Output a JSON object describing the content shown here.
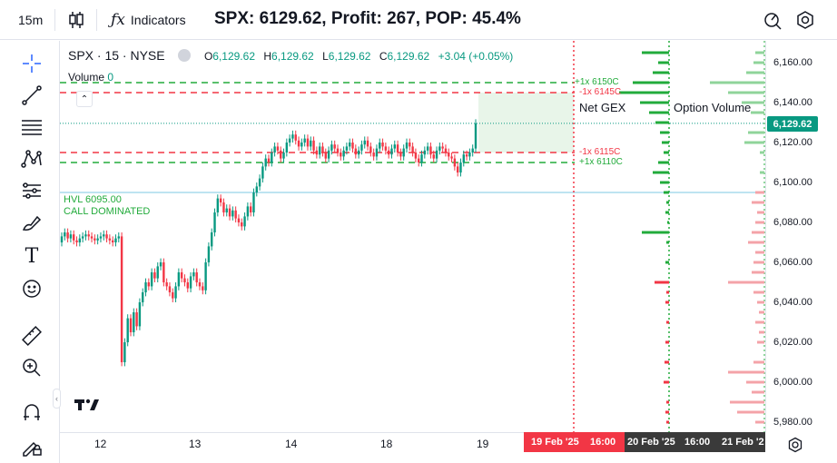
{
  "toolbar": {
    "interval": "15m",
    "indicators_label": "Indicators",
    "title": "SPX: 6129.62, Profit: 267, POP: 45.4%"
  },
  "legend": {
    "symbol": "SPX · 15 · NYSE",
    "o_label": "O",
    "o_value": "6,129.62",
    "h_label": "H",
    "h_value": "6,129.62",
    "l_label": "L",
    "l_value": "6,129.62",
    "c_label": "C",
    "c_value": "6,129.62",
    "change": "+3.04 (+0.05%)",
    "volume_label": "Volume",
    "volume_value": "0"
  },
  "annotations": {
    "hvl_line1": "HVL 6095.00",
    "hvl_line2": "CALL DOMINATED",
    "net_gex": "Net GEX",
    "option_volume": "Option Volume"
  },
  "levels": [
    {
      "label": "+1x 6150C",
      "price": 6150,
      "color": "#22ab3b"
    },
    {
      "label": "-1x 6145C",
      "price": 6145,
      "color": "#f23645"
    },
    {
      "label": "-1x 6115C",
      "price": 6115,
      "color": "#f23645"
    },
    {
      "label": "+1x 6110C",
      "price": 6110,
      "color": "#22ab3b"
    }
  ],
  "price_axis": {
    "ticks": [
      "6,160.00",
      "6,140.00",
      "6,120.00",
      "6,100.00",
      "6,080.00",
      "6,060.00",
      "6,040.00",
      "6,020.00",
      "6,000.00",
      "5,980.00"
    ],
    "current_price": "6,129.62"
  },
  "time_axis": {
    "ticks": [
      "12",
      "13",
      "14",
      "18",
      "19"
    ],
    "expiry_1_date": "19 Feb '25",
    "expiry_1_time": "16:00",
    "expiry_2_date": "20 Feb '25",
    "expiry_2_time": "16:00",
    "expiry_3_date": "21 Feb '2"
  },
  "chart_data": {
    "type": "candlestick",
    "ylim": [
      5975,
      6170
    ],
    "hvl": 6095,
    "last_price": 6129.62,
    "colors": {
      "up": "#089981",
      "down": "#f23645",
      "gex_pos": "#22ab3b",
      "gex_neg": "#f23645",
      "vol_pos": "#8fd49a",
      "vol_neg": "#f4a3a8"
    },
    "close_series": [
      6073,
      6075,
      6072,
      6074,
      6071,
      6070,
      6072,
      6073,
      6074,
      6073,
      6072,
      6071,
      6072,
      6073,
      6074,
      6072,
      6071,
      6070,
      6072,
      6073,
      6010,
      6020,
      6032,
      6025,
      6035,
      6028,
      6040,
      6045,
      6050,
      6048,
      6055,
      6052,
      6058,
      6060,
      6050,
      6048,
      6045,
      6042,
      6048,
      6055,
      6052,
      6050,
      6047,
      6053,
      6055,
      6050,
      6048,
      6046,
      6060,
      6068,
      6075,
      6085,
      6092,
      6090,
      6085,
      6087,
      6083,
      6086,
      6082,
      6080,
      6078,
      6083,
      6088,
      6085,
      6095,
      6098,
      6102,
      6108,
      6112,
      6110,
      6115,
      6118,
      6116,
      6112,
      6115,
      6120,
      6122,
      6124,
      6121,
      6118,
      6120,
      6122,
      6118,
      6121,
      6116,
      6114,
      6118,
      6115,
      6112,
      6116,
      6119,
      6117,
      6115,
      6113,
      6116,
      6118,
      6120,
      6117,
      6114,
      6116,
      6119,
      6121,
      6118,
      6115,
      6113,
      6117,
      6120,
      6118,
      6116,
      6114,
      6117,
      6119,
      6115,
      6113,
      6117,
      6120,
      6118,
      6115,
      6112,
      6110,
      6114,
      6116,
      6118,
      6114,
      6112,
      6116,
      6118,
      6117,
      6115,
      6113,
      6112,
      6108,
      6105,
      6110,
      6114,
      6113,
      6115,
      6117,
      6129.62
    ],
    "net_gex": [
      {
        "strike": 6165,
        "value": 30
      },
      {
        "strike": 6160,
        "value": 12
      },
      {
        "strike": 6155,
        "value": 18
      },
      {
        "strike": 6150,
        "value": 40
      },
      {
        "strike": 6145,
        "value": 55
      },
      {
        "strike": 6140,
        "value": 32
      },
      {
        "strike": 6135,
        "value": 22
      },
      {
        "strike": 6130,
        "value": 15
      },
      {
        "strike": 6125,
        "value": 10
      },
      {
        "strike": 6120,
        "value": 8
      },
      {
        "strike": 6115,
        "value": 6
      },
      {
        "strike": 6110,
        "value": 12
      },
      {
        "strike": 6105,
        "value": 18
      },
      {
        "strike": 6100,
        "value": 10
      },
      {
        "strike": 6095,
        "value": 6
      },
      {
        "strike": 6090,
        "value": 3
      },
      {
        "strike": 6085,
        "value": 4
      },
      {
        "strike": 6080,
        "value": 2
      },
      {
        "strike": 6075,
        "value": 30
      },
      {
        "strike": 6070,
        "value": 3
      },
      {
        "strike": 6060,
        "value": 4
      },
      {
        "strike": 6050,
        "value": -16
      },
      {
        "strike": 6045,
        "value": -3
      },
      {
        "strike": 6040,
        "value": -4
      },
      {
        "strike": 6030,
        "value": -3
      },
      {
        "strike": 6020,
        "value": -4
      },
      {
        "strike": 6010,
        "value": -5
      },
      {
        "strike": 6000,
        "value": -6
      },
      {
        "strike": 5990,
        "value": -3
      },
      {
        "strike": 5985,
        "value": -4
      },
      {
        "strike": 5980,
        "value": -3
      }
    ],
    "option_volume": [
      {
        "strike": 6165,
        "value": 10,
        "side": "call"
      },
      {
        "strike": 6160,
        "value": 12,
        "side": "call"
      },
      {
        "strike": 6155,
        "value": 20,
        "side": "call"
      },
      {
        "strike": 6150,
        "value": 60,
        "side": "call"
      },
      {
        "strike": 6145,
        "value": 40,
        "side": "call"
      },
      {
        "strike": 6140,
        "value": 25,
        "side": "call"
      },
      {
        "strike": 6135,
        "value": 15,
        "side": "call"
      },
      {
        "strike": 6125,
        "value": 18,
        "side": "call"
      },
      {
        "strike": 6120,
        "value": 22,
        "side": "call"
      },
      {
        "strike": 6115,
        "value": 5,
        "side": "call"
      },
      {
        "strike": 6105,
        "value": 5,
        "side": "call"
      },
      {
        "strike": 6095,
        "value": 10,
        "side": "put"
      },
      {
        "strike": 6090,
        "value": 14,
        "side": "put"
      },
      {
        "strike": 6085,
        "value": 8,
        "side": "put"
      },
      {
        "strike": 6080,
        "value": 10,
        "side": "put"
      },
      {
        "strike": 6075,
        "value": 14,
        "side": "put"
      },
      {
        "strike": 6070,
        "value": 18,
        "side": "put"
      },
      {
        "strike": 6065,
        "value": 10,
        "side": "put"
      },
      {
        "strike": 6060,
        "value": 12,
        "side": "put"
      },
      {
        "strike": 6055,
        "value": 14,
        "side": "put"
      },
      {
        "strike": 6050,
        "value": 40,
        "side": "put"
      },
      {
        "strike": 6045,
        "value": 12,
        "side": "put"
      },
      {
        "strike": 6040,
        "value": 8,
        "side": "put"
      },
      {
        "strike": 6035,
        "value": 6,
        "side": "put"
      },
      {
        "strike": 6030,
        "value": 10,
        "side": "put"
      },
      {
        "strike": 6025,
        "value": 6,
        "side": "put"
      },
      {
        "strike": 6020,
        "value": 8,
        "side": "put"
      },
      {
        "strike": 6010,
        "value": 12,
        "side": "put"
      },
      {
        "strike": 6005,
        "value": 40,
        "side": "put"
      },
      {
        "strike": 6000,
        "value": 20,
        "side": "put"
      },
      {
        "strike": 5995,
        "value": 14,
        "side": "put"
      },
      {
        "strike": 5990,
        "value": 38,
        "side": "put"
      },
      {
        "strike": 5985,
        "value": 30,
        "side": "put"
      },
      {
        "strike": 5980,
        "value": 10,
        "side": "put"
      }
    ]
  }
}
